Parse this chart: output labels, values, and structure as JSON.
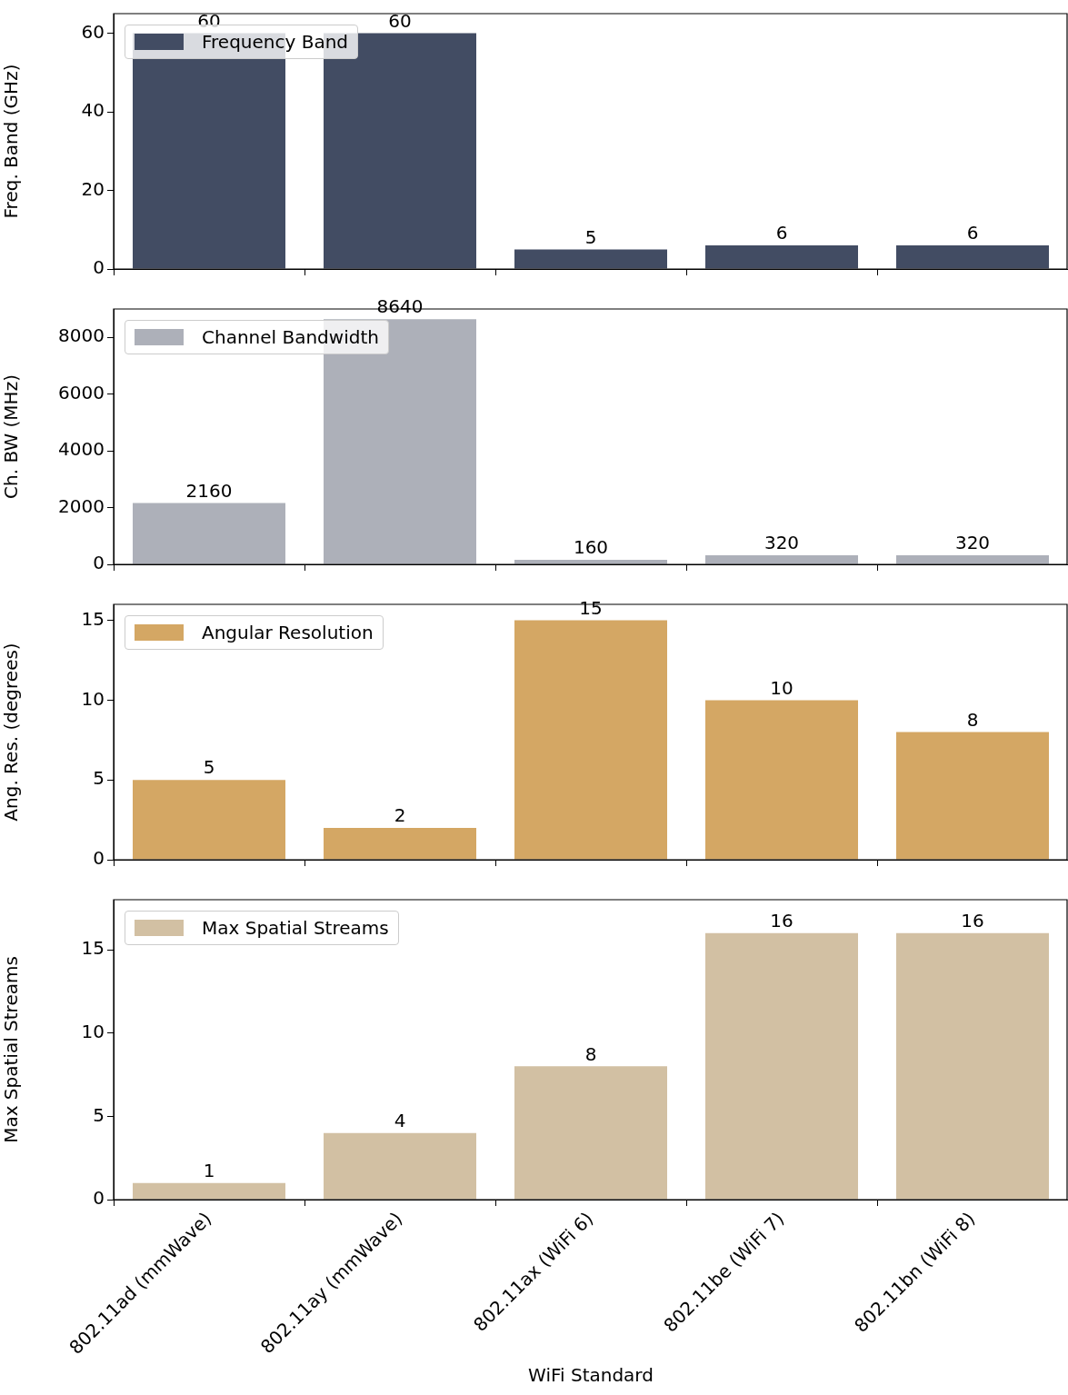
{
  "chart_data": [
    {
      "type": "bar",
      "categories": [
        null,
        null,
        null,
        null,
        null
      ],
      "series": [
        {
          "name": "Frequency Band",
          "color": "#424c63",
          "values": [
            60,
            60,
            5,
            6,
            6
          ]
        }
      ],
      "ylabel": "Freq. Band (GHz)",
      "ylim": [
        0,
        65
      ],
      "yticks": [
        0,
        20,
        40,
        60
      ],
      "legend": "top left",
      "data_labels": true,
      "tick_labels": "y"
    },
    {
      "type": "bar",
      "categories": [
        null,
        null,
        null,
        null,
        null
      ],
      "series": [
        {
          "name": "Channel Bandwidth",
          "color": "#adb0b9",
          "values": [
            2160,
            8640,
            160,
            320,
            320
          ]
        }
      ],
      "ylabel": "Ch. BW (MHz)",
      "ylim": [
        0,
        9000
      ],
      "yticks": [
        0,
        2000,
        4000,
        6000,
        8000
      ],
      "legend": "top left",
      "data_labels": true,
      "tick_labels": "y"
    },
    {
      "type": "bar",
      "categories": [
        null,
        null,
        null,
        null,
        null
      ],
      "series": [
        {
          "name": "Angular Resolution",
          "color": "#d4a764",
          "values": [
            5,
            2,
            15,
            10,
            8
          ]
        }
      ],
      "ylabel": "Ang. Res. (degrees)",
      "ylim": [
        0,
        16
      ],
      "yticks": [
        0,
        5,
        10,
        15
      ],
      "legend": "top left",
      "data_labels": true,
      "tick_labels": "y"
    },
    {
      "type": "bar",
      "categories": [
        "802.11ad (mmWave)",
        "802.11ay (mmWave)",
        "802.11ax (WiFi 6)",
        "802.11be (WiFi 7)",
        "802.11bn (WiFi 8)"
      ],
      "series": [
        {
          "name": "Max Spatial Streams",
          "color": "#d2c0a3",
          "values": [
            1,
            4,
            8,
            16,
            16
          ]
        }
      ],
      "xlabel": "WiFi Standard",
      "ylabel": "Max Spatial Streams",
      "ylim": [
        0,
        18
      ],
      "yticks": [
        0,
        5,
        10,
        15
      ],
      "legend": "top left",
      "data_labels": true
    }
  ]
}
